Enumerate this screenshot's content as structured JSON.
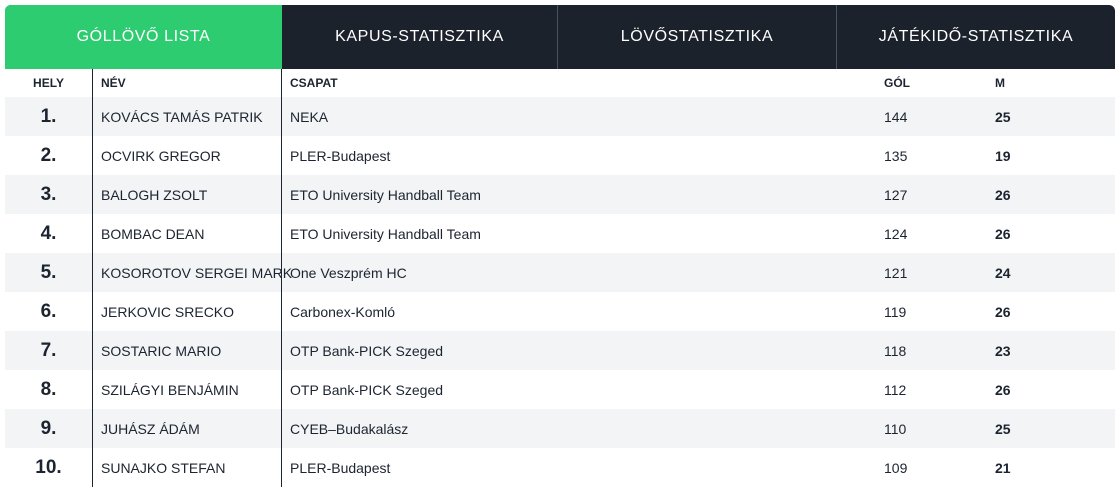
{
  "tabs": [
    {
      "label": "GÓLLÖVŐ LISTA",
      "active": true
    },
    {
      "label": "KAPUS-STATISZTIKA",
      "active": false
    },
    {
      "label": "LÖVŐSTATISZTIKA",
      "active": false
    },
    {
      "label": "JÁTÉKIDŐ-STATISZTIKA",
      "active": false
    }
  ],
  "table": {
    "headers": {
      "rank": "HELY",
      "name": "NÉV",
      "team": "CSAPAT",
      "goals": "GÓL",
      "matches": "M"
    },
    "rows": [
      {
        "rank": "1.",
        "name": "KOVÁCS TAMÁS PATRIK",
        "team": "NEKA",
        "goals": "144",
        "matches": "25"
      },
      {
        "rank": "2.",
        "name": "OCVIRK GREGOR",
        "team": "PLER-Budapest",
        "goals": "135",
        "matches": "19"
      },
      {
        "rank": "3.",
        "name": "BALOGH ZSOLT",
        "team": "ETO University Handball Team",
        "goals": "127",
        "matches": "26"
      },
      {
        "rank": "4.",
        "name": "BOMBAC DEAN",
        "team": "ETO University Handball Team",
        "goals": "124",
        "matches": "26"
      },
      {
        "rank": "5.",
        "name": "KOSOROTOV SERGEI MARK",
        "team": "One Veszprém HC",
        "goals": "121",
        "matches": "24"
      },
      {
        "rank": "6.",
        "name": "JERKOVIC SRECKO",
        "team": "Carbonex-Komló",
        "goals": "119",
        "matches": "26"
      },
      {
        "rank": "7.",
        "name": "SOSTARIC MARIO",
        "team": "OTP Bank-PICK Szeged",
        "goals": "118",
        "matches": "23"
      },
      {
        "rank": "8.",
        "name": "SZILÁGYI BENJÁMIN",
        "team": "OTP Bank-PICK Szeged",
        "goals": "112",
        "matches": "26"
      },
      {
        "rank": "9.",
        "name": "JUHÁSZ ÁDÁM",
        "team": "CYEB–Budakalász",
        "goals": "110",
        "matches": "25"
      },
      {
        "rank": "10.",
        "name": "SUNAJKO STEFAN",
        "team": "PLER-Budapest",
        "goals": "109",
        "matches": "21"
      }
    ]
  },
  "colors": {
    "active_tab": "#2ecc71",
    "tab_bar": "#1b222b",
    "row_alt": "#f2f4f6",
    "text": "#1c2430"
  }
}
